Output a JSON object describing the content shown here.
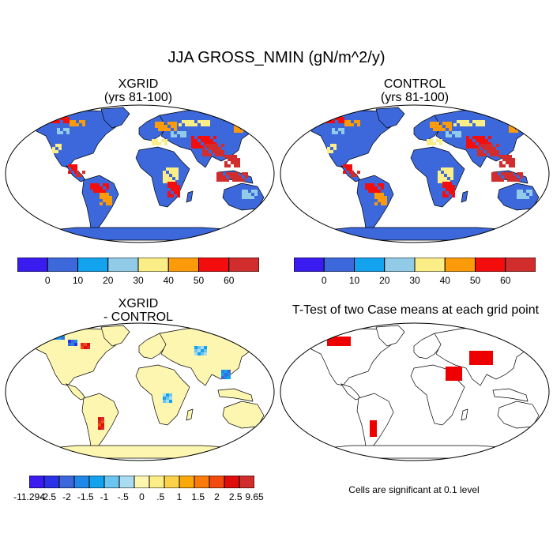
{
  "main_title": "JJA GROSS_NMIN (gN/m^2/y)",
  "panels": {
    "xgrid": {
      "title_line1": "XGRID",
      "title_line2": "(yrs 81-100)"
    },
    "control": {
      "title_line1": "CONTROL",
      "title_line2": "(yrs 81-100)"
    },
    "diff": {
      "title_line1": "XGRID",
      "title_line2": "- CONTROL"
    },
    "ttest": {
      "title": "T-Test of two Case means at each grid point",
      "note": "Cells are significant at 0.1 level"
    }
  },
  "colorbar_abs": {
    "colors": [
      "#3a1cf0",
      "#3c68dc",
      "#13a2ee",
      "#92cbe8",
      "#fcee86",
      "#fb9b0a",
      "#f40d0d",
      "#d22d2d"
    ],
    "labels": [
      "0",
      "10",
      "20",
      "30",
      "40",
      "50",
      "60"
    ]
  },
  "colorbar_diff": {
    "colors": [
      "#3a1cf0",
      "#2a32e8",
      "#3c68dc",
      "#1f88e8",
      "#13a2ee",
      "#6cc4f0",
      "#a9dcf0",
      "#fdf6b0",
      "#fcee86",
      "#fbd14a",
      "#fba80a",
      "#fb7a0a",
      "#f44a0d",
      "#e00d0d",
      "#d22d2d"
    ],
    "labels": [
      "-11.294",
      "-2.5",
      "-2",
      "-1.5",
      "-1",
      "-.5",
      "0",
      ".5",
      "1",
      "1.5",
      "2",
      "2.5",
      "9.65"
    ]
  },
  "map_colors": {
    "ocean": "#ffffff",
    "land_abs": "#3c68dc",
    "land_diff": "#fdf6b0",
    "significant": "#ee0000"
  }
}
